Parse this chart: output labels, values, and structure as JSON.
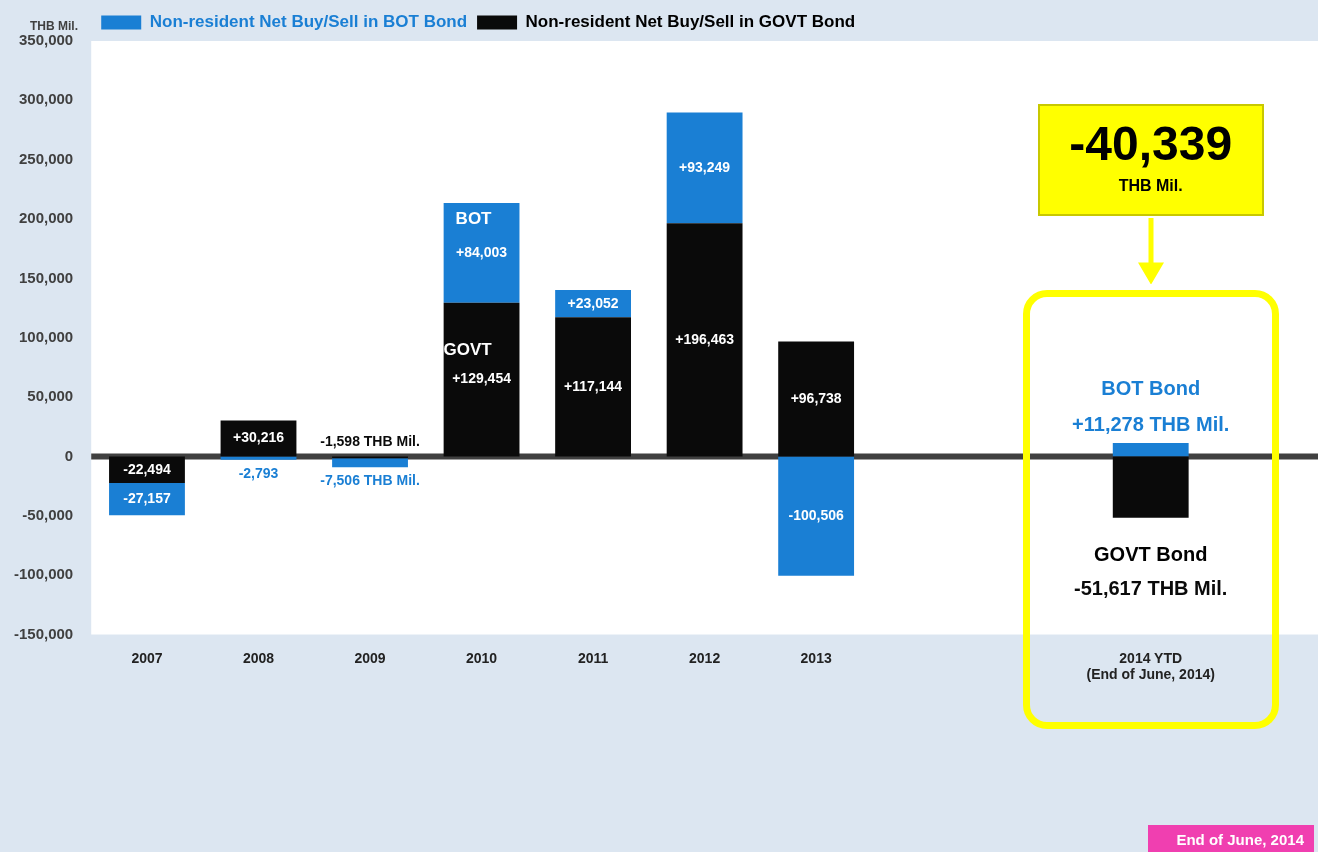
{
  "chart_data": {
    "type": "bar",
    "stacked": true,
    "ylabel": "THB Mil.",
    "categories": [
      "2007",
      "2008",
      "2009",
      "2010",
      "2011",
      "2012",
      "2013",
      null,
      null,
      "2014 YTD\n(End of June, 2014)",
      null
    ],
    "series": [
      {
        "name": "Non-resident Net Buy/Sell in GOVT Bond",
        "color": "#0a0a0a",
        "values": [
          -22494,
          30216,
          -1598,
          129454,
          117144,
          196463,
          96738,
          null,
          null,
          -51617,
          null
        ],
        "value_labels": [
          "-22,494",
          "+30,216",
          "-1,598 THB Mil.",
          "+129,454",
          "+117,144",
          "+196,463",
          "+96,738",
          null,
          null,
          "-51,617 THB Mil.",
          null
        ]
      },
      {
        "name": "Non-resident Net Buy/Sell in BOT Bond",
        "color": "#1a7fd4",
        "values": [
          -27157,
          -2793,
          -7506,
          84003,
          23052,
          93249,
          -100506,
          null,
          null,
          11278,
          null
        ],
        "value_labels": [
          "-27,157",
          "-2,793",
          "-7,506 THB Mil.",
          "+84,003",
          "+23,052",
          "+93,249",
          "-100,506",
          null,
          null,
          "+11,278 THB Mil.",
          null
        ]
      }
    ],
    "ylim": [
      -150000,
      350000
    ],
    "yticks": [
      {
        "value": -150000,
        "label": "-150,000"
      },
      {
        "value": -100000,
        "label": "-100,000"
      },
      {
        "value": -50000,
        "label": "-50,000"
      },
      {
        "value": 0,
        "label": "0"
      },
      {
        "value": 50000,
        "label": "50,000"
      },
      {
        "value": 100000,
        "label": "100,000"
      },
      {
        "value": 150000,
        "label": "150,000"
      },
      {
        "value": 200000,
        "label": "200,000"
      },
      {
        "value": 250000,
        "label": "250,000"
      },
      {
        "value": 300000,
        "label": "300,000"
      },
      {
        "value": 350000,
        "label": "350,000"
      }
    ],
    "ref_lines": [
      {
        "axis": "y",
        "value": 0,
        "color": "#404040"
      }
    ],
    "annotations": [
      "BOT",
      "GOVT",
      "BOT Bond",
      "GOVT Bond",
      "-40,339\nTHB Mil.",
      "End of June, 2014"
    ],
    "grid": false,
    "legend": "top left"
  }
}
